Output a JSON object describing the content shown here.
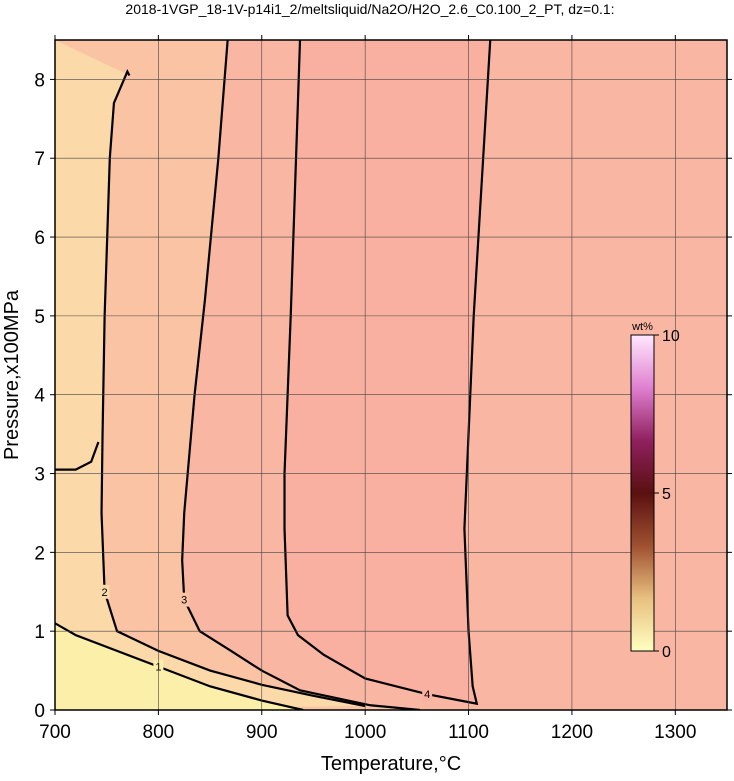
{
  "chart_data": {
    "type": "contour",
    "title": "2018-1VGP_18-1V-p14i1_2/meltsliquid/Na2O/H2O_2.6_C0.100_2_PT, dz=0.1:",
    "x_label": "Temperature,°C",
    "y_label": "Pressure,x100MPa",
    "xlim": [
      700,
      1350
    ],
    "ylim": [
      0,
      8.5
    ],
    "xticks": [
      700,
      800,
      900,
      1000,
      1100,
      1200,
      1300
    ],
    "yticks": [
      0,
      1,
      2,
      3,
      4,
      5,
      6,
      7,
      8
    ],
    "grid": true,
    "background": "#f9b6a3",
    "line_color": "#000000",
    "contours": [
      {
        "level": 4,
        "fill": "#fab0a0",
        "x": [
          937,
          928,
          922,
          922,
          925,
          935,
          960,
          1000,
          1060,
          1100,
          1108,
          1104,
          1100,
          1096,
          1100,
          1105,
          1121
        ],
        "y": [
          8.5,
          5.0,
          3.0,
          2.3,
          1.2,
          0.95,
          0.7,
          0.4,
          0.2,
          0.1,
          0.08,
          0.3,
          1.0,
          2.3,
          3.5,
          5.0,
          8.5
        ]
      },
      {
        "level": 3,
        "fill": "#f9c3a4",
        "x": [
          867,
          858,
          845,
          835,
          825,
          823,
          825,
          840,
          869,
          900,
          937,
          1005,
          1053
        ],
        "y": [
          8.5,
          7.0,
          5.2,
          4.0,
          2.5,
          1.9,
          1.4,
          1.0,
          0.76,
          0.5,
          0.25,
          0.06,
          0
        ]
      },
      {
        "level": 2,
        "fill": "#fbd9a9",
        "x": [
          772,
          770,
          757,
          753,
          748,
          746,
          745,
          748,
          760,
          800,
          850,
          900,
          950,
          1000,
          null,
          700,
          720,
          735,
          742
        ],
        "y": [
          8.05,
          8.1,
          7.7,
          7.0,
          5.0,
          3.5,
          2.5,
          1.5,
          1.0,
          0.75,
          0.5,
          0.32,
          0.18,
          0.05,
          null,
          3.05,
          3.05,
          3.15,
          3.4
        ]
      },
      {
        "level": 1,
        "fill": "#fcefaa",
        "x": [
          700,
          720,
          760,
          800,
          850,
          900,
          940
        ],
        "y": [
          1.1,
          0.95,
          0.75,
          0.55,
          0.3,
          0.12,
          0
        ]
      }
    ],
    "colorbar": {
      "label": "wt%",
      "lim": [
        0,
        10
      ],
      "ticks": [
        0,
        5,
        10
      ],
      "colors": [
        "#ffffc0",
        "#e8c080",
        "#a05030",
        "#5a1010",
        "#902060",
        "#e080d0",
        "#ffe8ff"
      ]
    }
  }
}
